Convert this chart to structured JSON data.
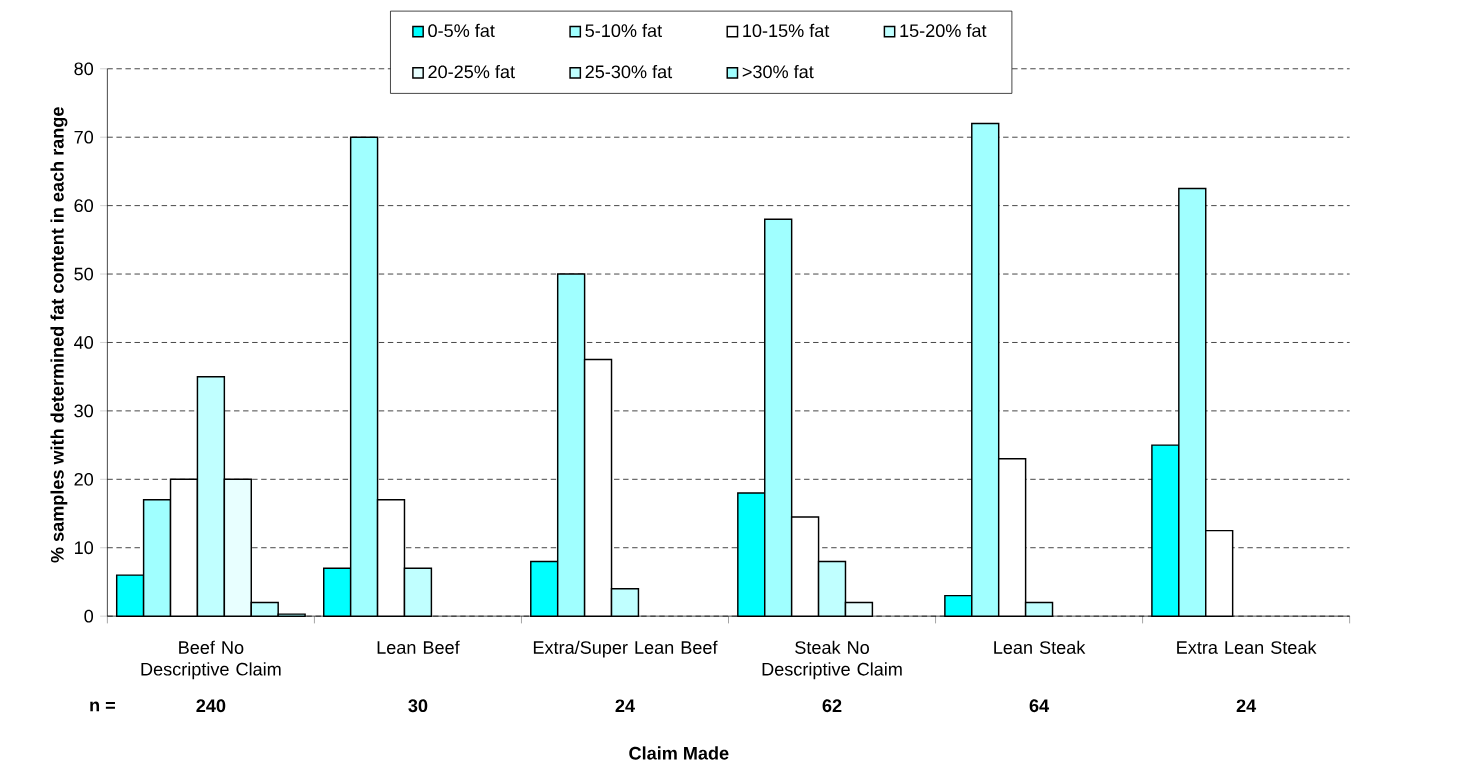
{
  "chart_data": {
    "type": "bar",
    "xlabel": "Claim Made",
    "ylabel": "% samples with determined fat content in each range",
    "categories": [
      "Beef No Descriptive Claim",
      "Lean Beef",
      "Extra/Super Lean Beef",
      "Steak No Descriptive Claim",
      "Lean Steak",
      "Extra Lean Steak"
    ],
    "series": [
      {
        "name": "0-5% fat",
        "color": "#00ffff",
        "values": [
          6,
          7,
          8,
          18,
          3,
          25
        ]
      },
      {
        "name": "5-10% fat",
        "color": "#a0ffff",
        "values": [
          17,
          70,
          50,
          58,
          72,
          62.5
        ]
      },
      {
        "name": "10-15% fat",
        "color": "#ffffff",
        "values": [
          20,
          17,
          37.5,
          14.5,
          23,
          12.5
        ]
      },
      {
        "name": "15-20% fat",
        "color": "#c0ffff",
        "values": [
          35,
          7,
          4,
          8,
          2,
          null
        ]
      },
      {
        "name": "20-25% fat",
        "color": "#e8ffff",
        "values": [
          20,
          null,
          null,
          2,
          null,
          null
        ]
      },
      {
        "name": "25-30% fat",
        "color": "#c0ffff",
        "values": [
          2,
          null,
          null,
          null,
          null,
          null
        ]
      },
      {
        "name": ">30% fat",
        "color": "#a0ffff",
        "values": [
          0.3,
          null,
          null,
          null,
          null,
          null
        ]
      }
    ],
    "ylim": [
      0,
      80
    ],
    "yticks": [
      0,
      10,
      20,
      30,
      40,
      50,
      60,
      70,
      80
    ],
    "grid": "y",
    "legend": "top",
    "annotations": [
      "n =",
      "240",
      "30",
      "24",
      "62",
      "64",
      "24"
    ]
  }
}
